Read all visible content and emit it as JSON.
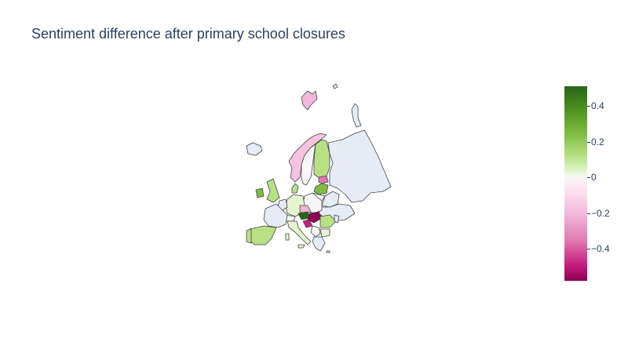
{
  "title": "Sentiment difference after primary school closures",
  "colorbar": {
    "ticks": [
      {
        "label": "0.4",
        "value": 0.4
      },
      {
        "label": "0.2",
        "value": 0.2
      },
      {
        "label": "0",
        "value": 0
      },
      {
        "label": "−0.2",
        "value": -0.2
      },
      {
        "label": "−0.4",
        "value": -0.4
      }
    ],
    "range": [
      -0.58,
      0.51
    ],
    "colorscale": [
      "#8e0152",
      "#c51b7d",
      "#de77ae",
      "#f1b6da",
      "#fde0ef",
      "#f7f7f7",
      "#e6f5d0",
      "#b8e186",
      "#7fbc41",
      "#4d9221",
      "#276419"
    ]
  },
  "no_data_color": "#e5ecf6",
  "border_color": "#444444"
}
